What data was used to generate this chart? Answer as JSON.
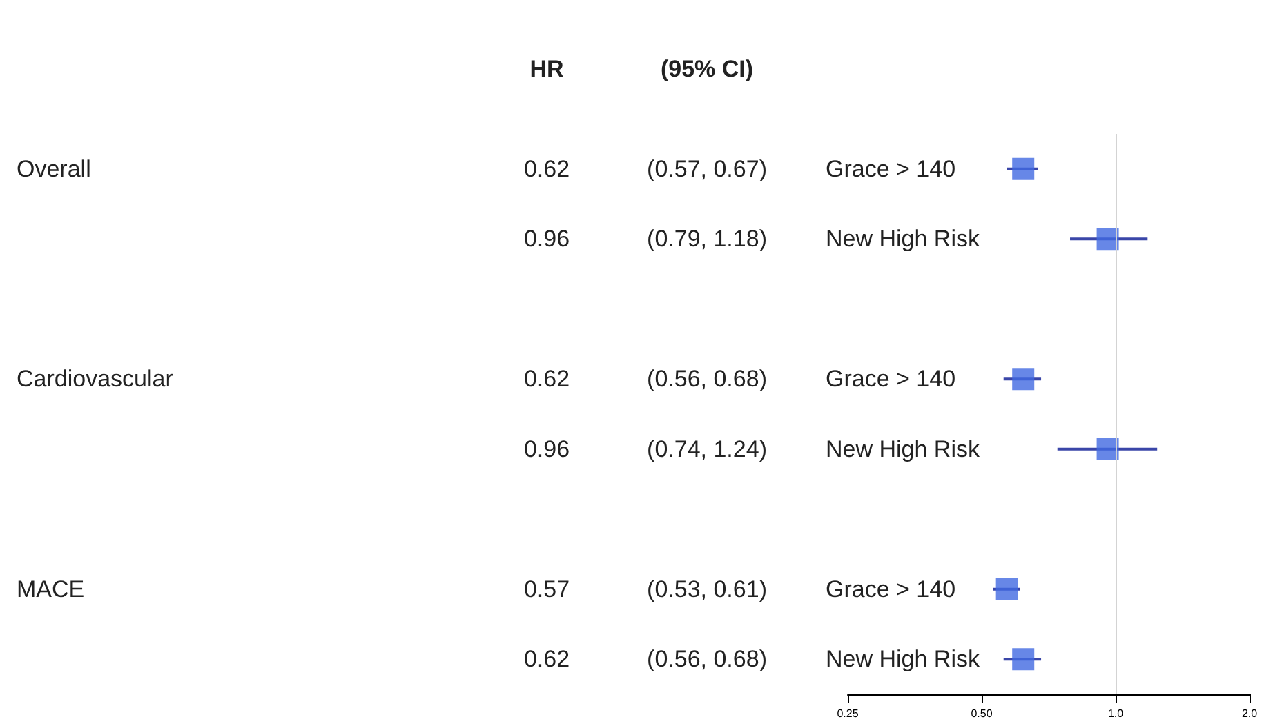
{
  "chart_data": {
    "type": "scatter",
    "orientation": "horizontal",
    "categories": [
      "Grace > 140",
      "New High Risk",
      null,
      "Grace > 140",
      "New High Risk",
      null,
      "Grace > 140",
      "New High Risk"
    ],
    "values": [
      0.62,
      0.96,
      null,
      0.62,
      0.96,
      null,
      0.57,
      0.62
    ],
    "errors": [
      [
        0.57,
        0.67
      ],
      [
        0.79,
        1.18
      ],
      null,
      [
        0.56,
        0.68
      ],
      [
        0.74,
        1.24
      ],
      null,
      [
        0.53,
        0.61
      ],
      [
        0.56,
        0.68
      ]
    ],
    "value_labels": [
      "0.62",
      "0.96",
      null,
      "0.62",
      "0.96",
      null,
      "0.57",
      "0.62"
    ],
    "color": "#4169e1",
    "marker": "square",
    "log": "x",
    "grid": false,
    "xlim": [
      0.25,
      2.0
    ],
    "xticks": [
      0.25,
      {
        "value": 0.5,
        "label": "0.50"
      },
      {
        "value": 1,
        "label": "1.0"
      },
      {
        "value": 2,
        "label": "2.0"
      }
    ],
    "ref_lines": [
      {
        "axis": "x",
        "value": 1,
        "color": "#d3d3d3"
      }
    ],
    "annotations": [
      "HR",
      "(95% CI)",
      "Overall",
      "Cardiovascular",
      "MACE",
      "(0.57, 0.67)",
      "(0.79, 1.18)",
      "(0.56, 0.68)",
      "(0.74, 1.24)",
      "(0.53, 0.61)",
      "(0.56, 0.68)"
    ]
  }
}
